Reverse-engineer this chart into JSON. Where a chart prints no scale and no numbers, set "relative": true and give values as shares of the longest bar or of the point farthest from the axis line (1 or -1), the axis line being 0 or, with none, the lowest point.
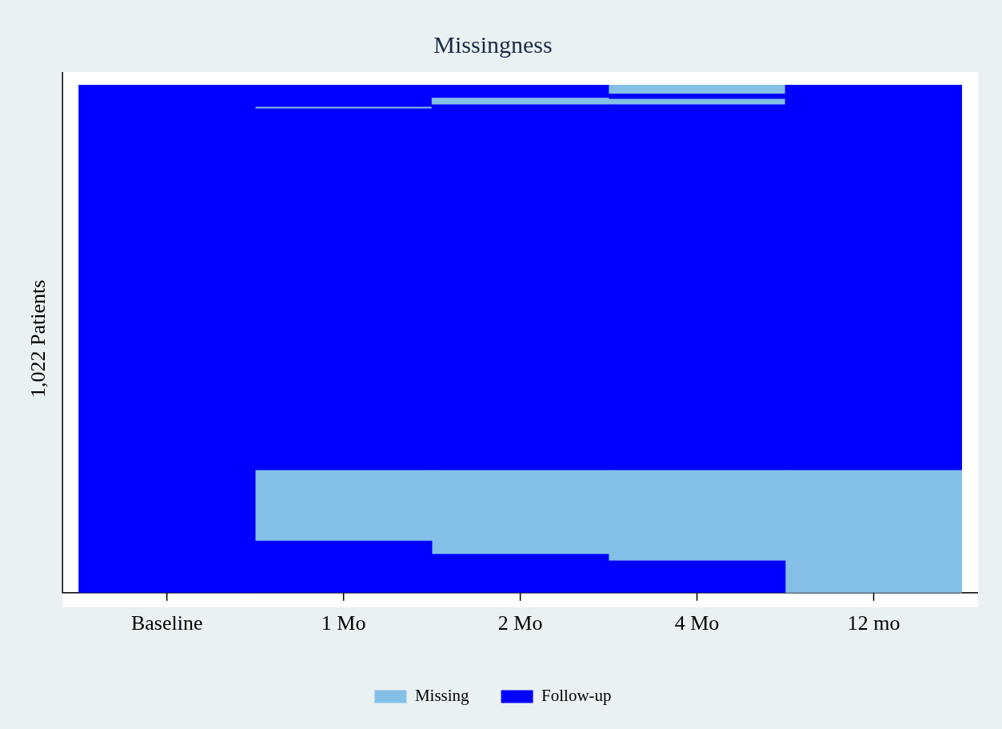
{
  "chart_data": {
    "type": "bar",
    "title": "Missingness",
    "ylabel": "1,022 Patients",
    "categories": [
      "Baseline",
      "1 Mo",
      "2 Mo",
      "4 Mo",
      "12 mo"
    ],
    "stacked": true,
    "relative": true,
    "legend": "bottom",
    "grid": false,
    "series": [
      {
        "name": "Follow-up",
        "color": "#0000ff",
        "values": [
          1.0,
          0.102,
          0.076,
          0.063,
          null
        ]
      },
      {
        "name": "Missing",
        "color": "#84bfe8",
        "values": [
          null,
          0.139,
          0.165,
          0.178,
          0.241
        ]
      },
      {
        "color": "#0000ff",
        "values": [
          null,
          0.712,
          0.72,
          0.72,
          0.759
        ]
      },
      {
        "color": "#84bfe8",
        "values": [
          null,
          0.003,
          0.013,
          0.011,
          null
        ]
      },
      {
        "color": "#0000ff",
        "values": [
          null,
          0.044,
          0.026,
          0.01,
          null
        ]
      },
      {
        "color": "#84bfe8",
        "values": [
          null,
          null,
          null,
          0.018,
          null
        ]
      }
    ]
  }
}
